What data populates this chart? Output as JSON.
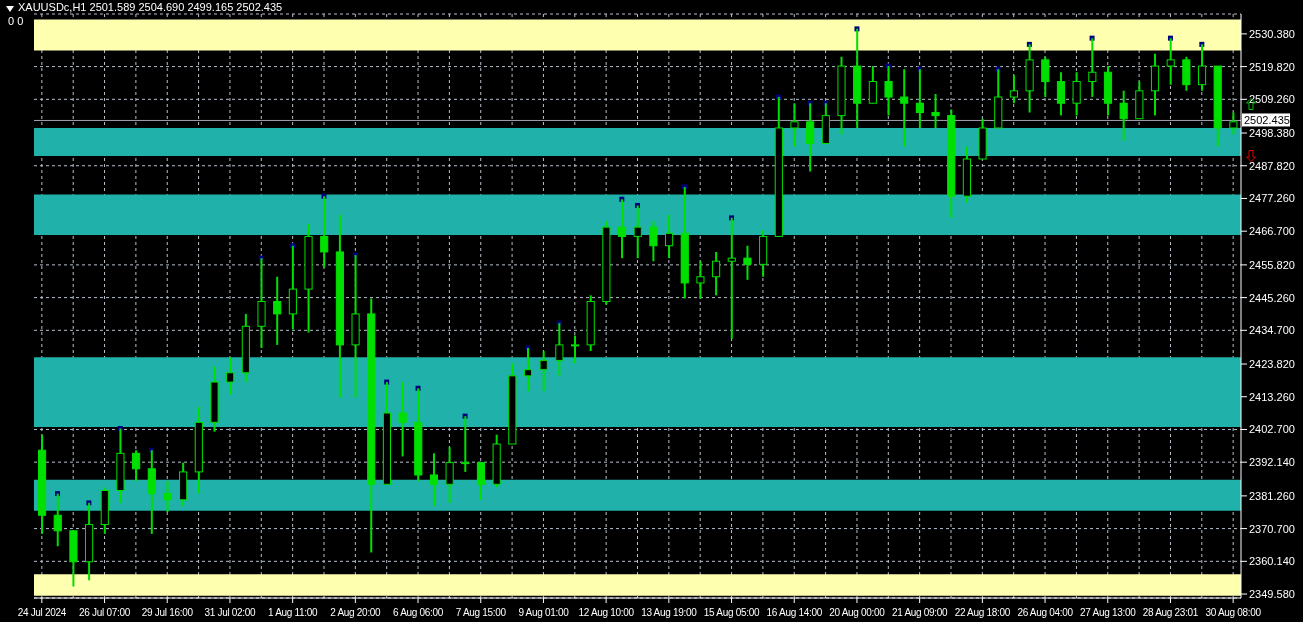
{
  "chart_data": {
    "type": "candlestick",
    "title": "XAUUSDc,H1  2501.589 2504.690 2499.165 2502.435",
    "subtitle": "0 0",
    "categories": [
      "24 Jul 2024",
      null,
      null,
      null,
      "26 Jul 07:00",
      null,
      null,
      null,
      "29 Jul 16:00",
      null,
      null,
      null,
      "31 Jul 02:00",
      null,
      null,
      null,
      "1 Aug 11:00",
      null,
      null,
      null,
      "2 Aug 20:00",
      null,
      null,
      null,
      "6 Aug 06:00",
      null,
      null,
      null,
      "7 Aug 15:00",
      null,
      null,
      null,
      "9 Aug 01:00",
      null,
      null,
      null,
      "12 Aug 10:00",
      null,
      null,
      null,
      "13 Aug 19:00",
      null,
      null,
      null,
      "15 Aug 05:00",
      null,
      null,
      null,
      "16 Aug 14:00",
      null,
      null,
      null,
      "20 Aug 00:00",
      null,
      null,
      null,
      "21 Aug 09:00",
      null,
      null,
      null,
      "22 Aug 18:00",
      null,
      null,
      null,
      "26 Aug 04:00",
      null,
      null,
      null,
      "27 Aug 13:00",
      null,
      null,
      null,
      "28 Aug 23:01",
      null,
      null,
      null,
      "30 Aug 08:00"
    ],
    "color": "#00e000",
    "ohlc": [
      [
        2396,
        2401,
        2369,
        2375
      ],
      [
        2375,
        2382,
        2365,
        2370
      ],
      [
        2370,
        2370,
        2352,
        2360
      ],
      [
        2360,
        2379,
        2354,
        2372
      ],
      [
        2372,
        2384,
        2369,
        2383
      ],
      [
        2383,
        2403,
        2379,
        2395
      ],
      [
        2395,
        2396,
        2386,
        2390
      ],
      [
        2390,
        2396,
        2369,
        2382
      ],
      [
        2382,
        2386,
        2376,
        2380
      ],
      [
        2380,
        2392,
        2378,
        2389
      ],
      [
        2389,
        2410,
        2382,
        2405
      ],
      [
        2405,
        2423,
        2402,
        2418
      ],
      [
        2418,
        2426,
        2414,
        2421
      ],
      [
        2421,
        2440,
        2418,
        2436
      ],
      [
        2436,
        2458,
        2429,
        2444
      ],
      [
        2444,
        2452,
        2430,
        2440
      ],
      [
        2440,
        2462,
        2435,
        2448
      ],
      [
        2448,
        2469,
        2434,
        2465
      ],
      [
        2465,
        2478,
        2455,
        2460
      ],
      [
        2460,
        2472,
        2413,
        2430
      ],
      [
        2430,
        2459,
        2413,
        2440
      ],
      [
        2440,
        2445,
        2363,
        2385
      ],
      [
        2385,
        2418,
        2385,
        2408
      ],
      [
        2408,
        2418,
        2394,
        2405
      ],
      [
        2405,
        2416,
        2386,
        2388
      ],
      [
        2388,
        2395,
        2378,
        2385
      ],
      [
        2385,
        2397,
        2379,
        2392
      ],
      [
        2392,
        2407,
        2389,
        2392
      ],
      [
        2392,
        2392,
        2380,
        2385
      ],
      [
        2385,
        2401,
        2384,
        2398
      ],
      [
        2398,
        2424,
        2398,
        2420
      ],
      [
        2420,
        2429,
        2415,
        2422
      ],
      [
        2422,
        2428,
        2415,
        2425
      ],
      [
        2425,
        2437,
        2420,
        2430
      ],
      [
        2430,
        2433,
        2424,
        2430
      ],
      [
        2430,
        2446,
        2428,
        2444
      ],
      [
        2444,
        2470,
        2443,
        2468
      ],
      [
        2468,
        2477,
        2458,
        2465
      ],
      [
        2465,
        2475,
        2458,
        2468
      ],
      [
        2468,
        2470,
        2457,
        2462
      ],
      [
        2462,
        2472,
        2458,
        2466
      ],
      [
        2466,
        2481,
        2445,
        2450
      ],
      [
        2450,
        2457,
        2445,
        2452
      ],
      [
        2452,
        2460,
        2446,
        2457
      ],
      [
        2457,
        2471,
        2432,
        2458
      ],
      [
        2458,
        2462,
        2451,
        2456
      ],
      [
        2456,
        2467,
        2452,
        2465
      ],
      [
        2465,
        2510,
        2465,
        2500
      ],
      [
        2500,
        2508,
        2494,
        2502
      ],
      [
        2502,
        2508,
        2486,
        2495
      ],
      [
        2495,
        2508,
        2495,
        2504
      ],
      [
        2504,
        2523,
        2498,
        2520
      ],
      [
        2520,
        2532,
        2500,
        2508
      ],
      [
        2508,
        2520,
        2508,
        2515
      ],
      [
        2515,
        2520,
        2504,
        2510
      ],
      [
        2510,
        2519,
        2494,
        2508
      ],
      [
        2508,
        2519,
        2500,
        2505
      ],
      [
        2505,
        2511,
        2500,
        2504
      ],
      [
        2504,
        2506,
        2471,
        2478
      ],
      [
        2478,
        2494,
        2476,
        2490
      ],
      [
        2490,
        2503,
        2490,
        2500
      ],
      [
        2500,
        2519,
        2500,
        2510
      ],
      [
        2510,
        2517,
        2508,
        2512
      ],
      [
        2512,
        2527,
        2505,
        2522
      ],
      [
        2522,
        2523,
        2510,
        2515
      ],
      [
        2515,
        2518,
        2504,
        2508
      ],
      [
        2508,
        2518,
        2504,
        2515
      ],
      [
        2515,
        2529,
        2510,
        2518
      ],
      [
        2518,
        2520,
        2504,
        2508
      ],
      [
        2508,
        2512,
        2496,
        2503
      ],
      [
        2503,
        2515,
        2503,
        2512
      ],
      [
        2512,
        2524,
        2504,
        2520
      ],
      [
        2520,
        2529,
        2514,
        2522
      ],
      [
        2522,
        2523,
        2512,
        2514
      ],
      [
        2514,
        2527,
        2512,
        2520
      ],
      [
        2520,
        2520,
        2494,
        2500
      ],
      [
        2500,
        2505,
        2498,
        2502
      ]
    ],
    "series": [
      {
        "type": "scatter",
        "color": "#000080",
        "marker": "square",
        "values": [
          null,
          2382,
          null,
          2379,
          null,
          2403,
          null,
          2396,
          null,
          null,
          null,
          null,
          null,
          null,
          2458,
          null,
          2462,
          null,
          2478,
          null,
          2459,
          null,
          2418,
          null,
          2416,
          null,
          null,
          2407,
          null,
          null,
          null,
          2429,
          null,
          2437,
          null,
          null,
          null,
          2477,
          2475,
          null,
          null,
          2481,
          null,
          null,
          2471,
          null,
          null,
          2510,
          null,
          2508,
          2508,
          null,
          2532,
          null,
          2520,
          null,
          2519,
          null,
          null,
          null,
          null,
          2519,
          null,
          2527,
          null,
          null,
          null,
          2529,
          null,
          null,
          null,
          null,
          2529,
          null,
          2527,
          null,
          null
        ]
      }
    ],
    "ylim": [
      2348.3,
      2536.8
    ],
    "yticks": [
      {
        "value": 2349.58,
        "label": "2349.580"
      },
      {
        "value": 2360.14,
        "label": "2360.140"
      },
      {
        "value": 2370.7,
        "label": "2370.700"
      },
      {
        "value": 2381.26,
        "label": "2381.260"
      },
      {
        "value": 2392.14,
        "label": "2392.140"
      },
      {
        "value": 2402.7,
        "label": "2402.700"
      },
      {
        "value": 2413.26,
        "label": "2413.260"
      },
      {
        "value": 2423.82,
        "label": "2423.820"
      },
      {
        "value": 2434.7,
        "label": "2434.700"
      },
      {
        "value": 2445.26,
        "label": "2445.260"
      },
      {
        "value": 2455.82,
        "label": "2455.820"
      },
      {
        "value": 2466.7,
        "label": "2466.700"
      },
      {
        "value": 2477.26,
        "label": "2477.260"
      },
      {
        "value": 2487.82,
        "label": "2487.820"
      },
      {
        "value": 2498.38,
        "label": "2498.380"
      },
      {
        "value": 2509.26,
        "label": "2509.260"
      },
      {
        "value": 2519.82,
        "label": "2519.820"
      },
      {
        "value": 2530.38,
        "label": "2530.380"
      }
    ],
    "bands": [
      {
        "axis": "y",
        "from": 2525,
        "to": 2535,
        "color": "#ffffb0"
      },
      {
        "axis": "y",
        "from": 2349,
        "to": 2356,
        "color": "#ffffb0"
      },
      {
        "axis": "y",
        "from": 2491,
        "to": 2500,
        "color": "#20b2aa"
      },
      {
        "axis": "y",
        "from": 2465.5,
        "to": 2478.5,
        "color": "#20b2aa"
      },
      {
        "axis": "y",
        "from": 2403.5,
        "to": 2426,
        "color": "#20b2aa"
      },
      {
        "axis": "y",
        "from": 2376.5,
        "to": 2386.5,
        "color": "#20b2aa"
      }
    ],
    "ref_lines": [
      {
        "axis": "y",
        "value": 2502.435,
        "label": "2502.435",
        "color": "#a0a0b4",
        "line_style": "solid"
      }
    ],
    "grid": true
  }
}
